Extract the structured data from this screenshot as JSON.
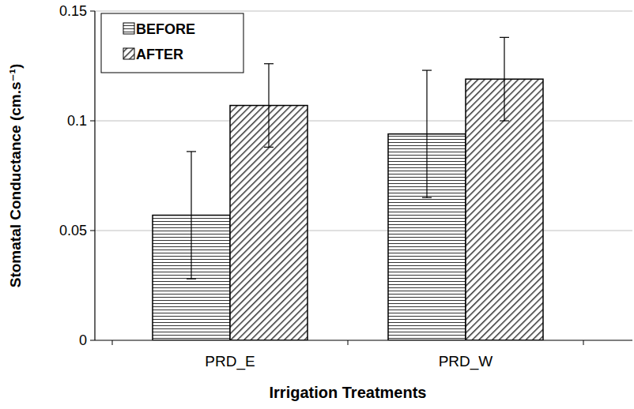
{
  "chart_data": {
    "type": "bar",
    "x_label": "Irrigation Treatments",
    "y_label": "Stomatal Conductance (cm.s⁻¹)",
    "categories": [
      "PRD_E",
      "PRD_W"
    ],
    "series": [
      {
        "name": "BEFORE",
        "color": "#333333",
        "values": [
          0.057,
          0.094
        ],
        "errors": [
          0.029,
          0.029
        ]
      },
      {
        "name": "AFTER",
        "color": "#333333",
        "values": [
          0.107,
          0.119
        ],
        "errors": [
          0.019,
          0.019
        ]
      }
    ],
    "ylim": [
      0,
      0.15
    ],
    "yticks": [
      0,
      0.05,
      0.1,
      0.15
    ],
    "grid": true,
    "legend": "top-left"
  }
}
